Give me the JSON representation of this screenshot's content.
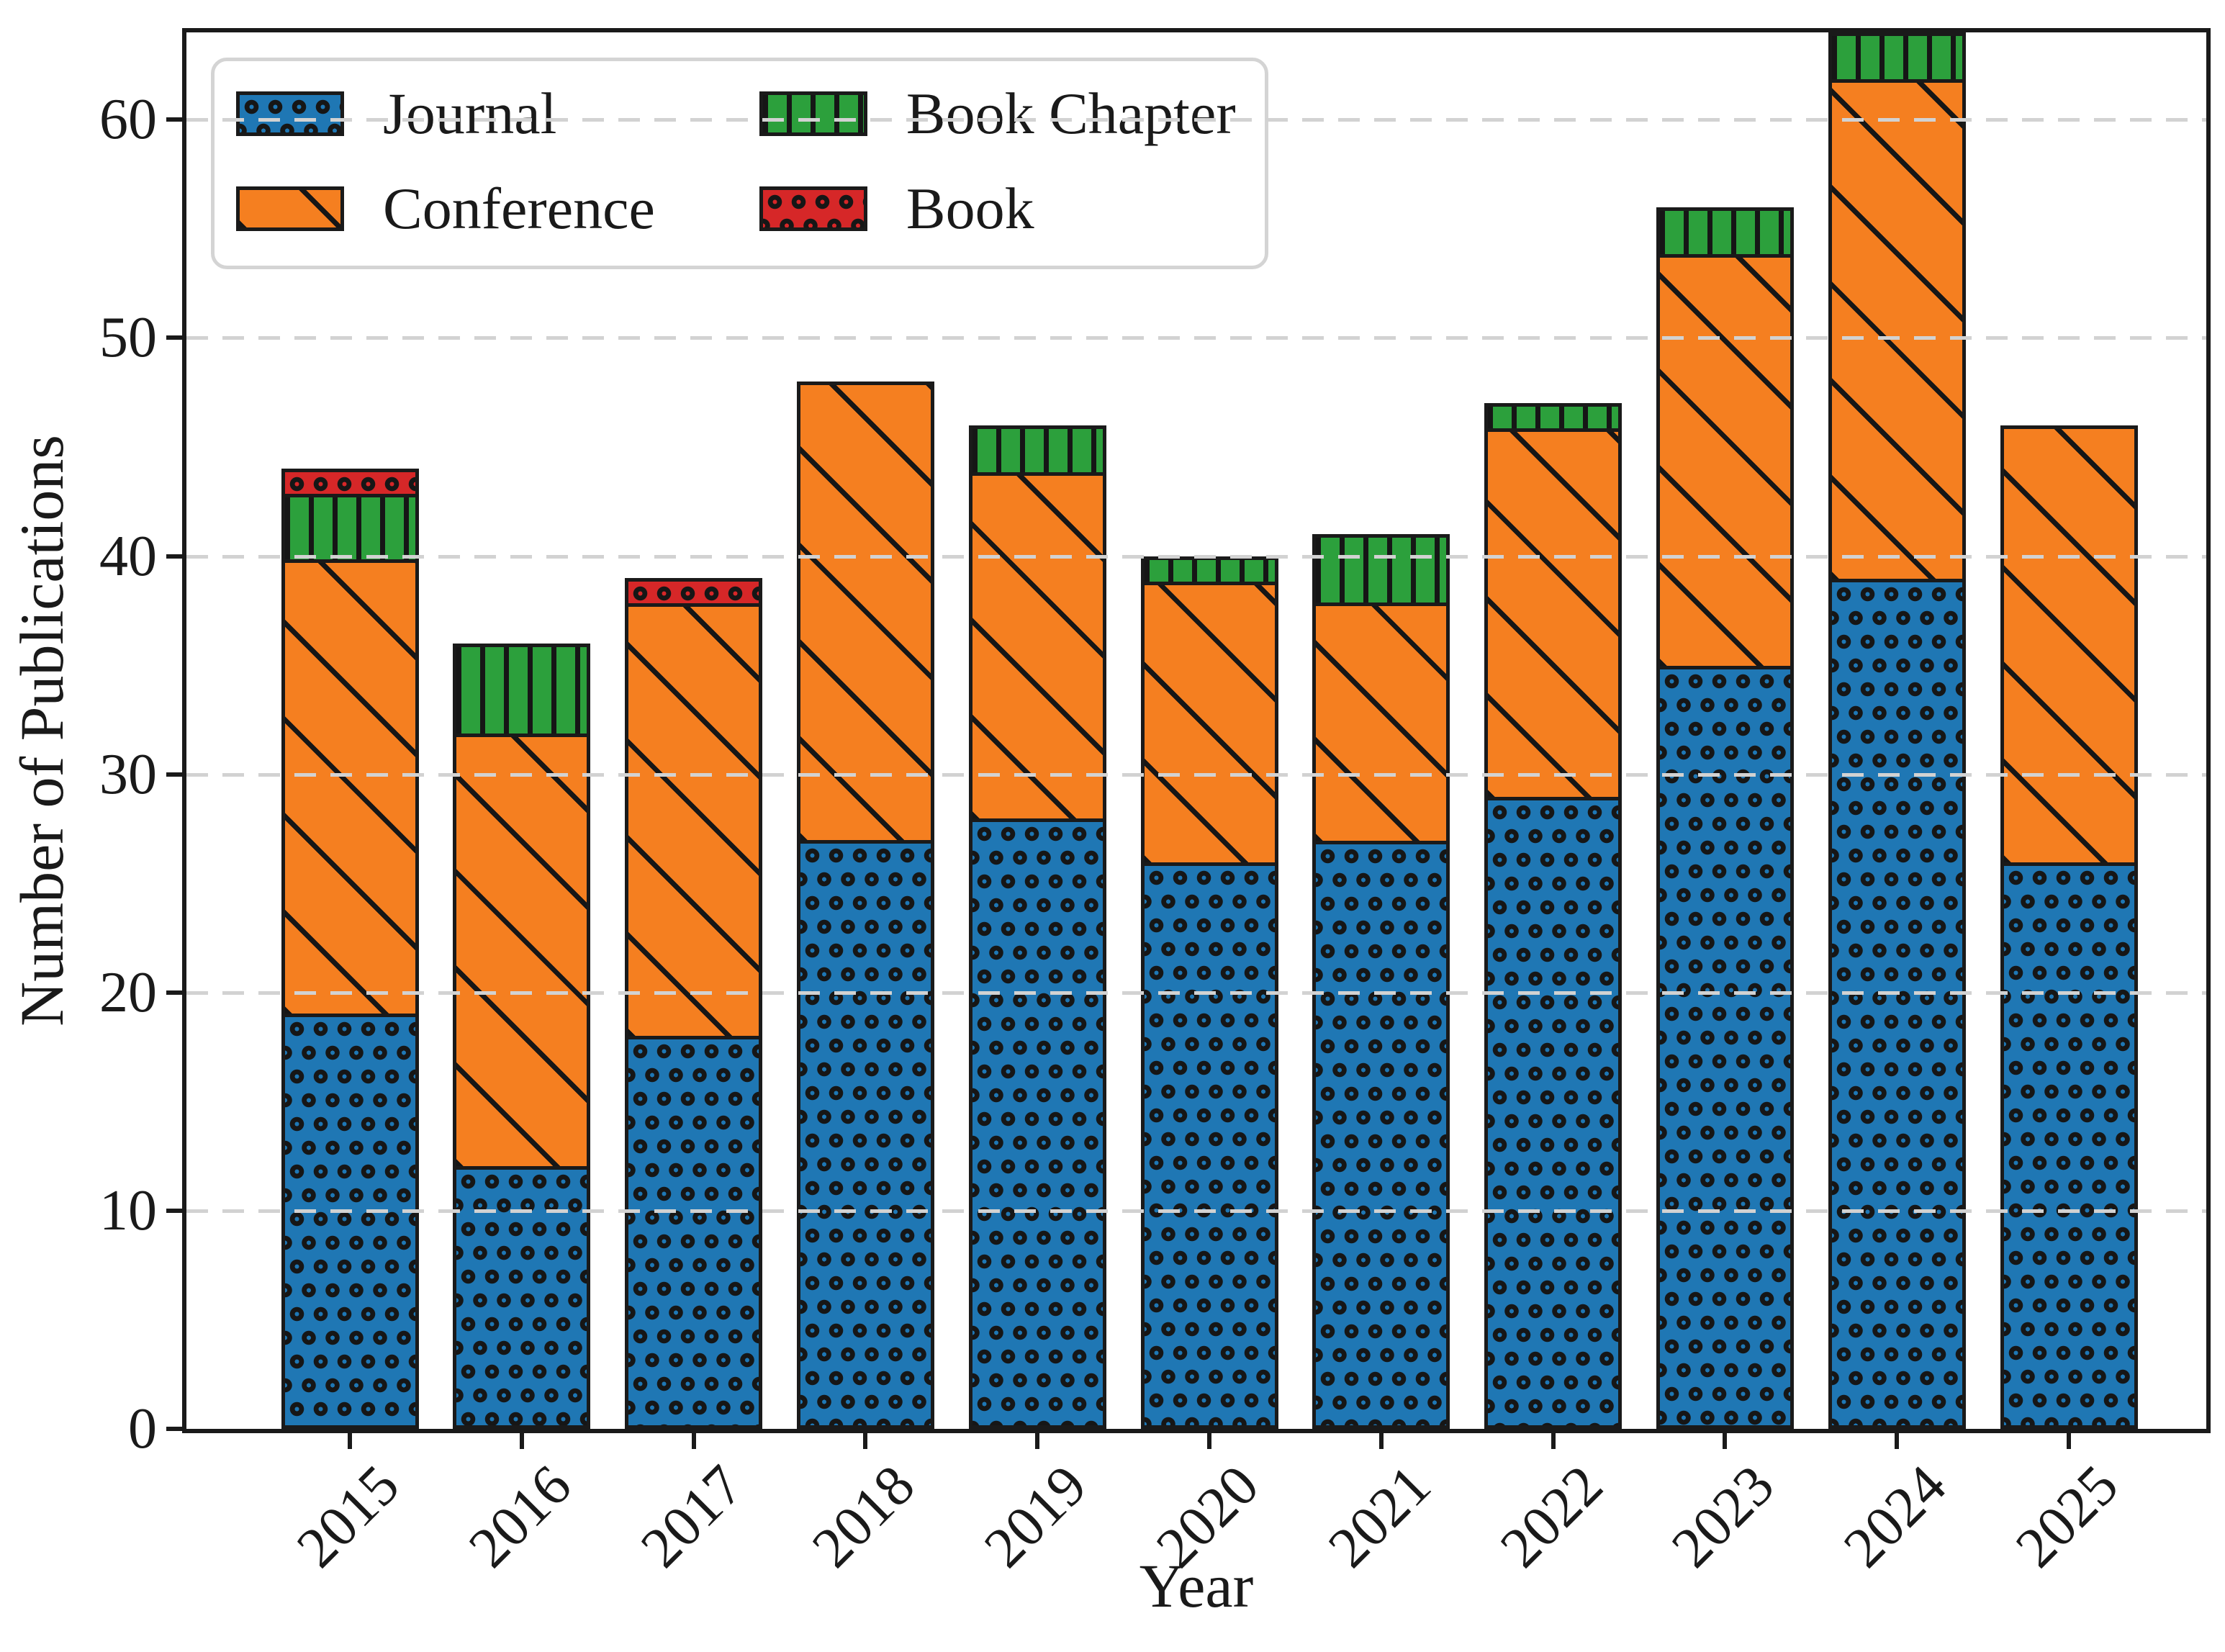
{
  "chart_data": {
    "type": "bar",
    "stacked": true,
    "title": "",
    "xlabel": "Year",
    "ylabel": "Number of Publications",
    "categories": [
      "2015",
      "2016",
      "2017",
      "2018",
      "2019",
      "2020",
      "2021",
      "2022",
      "2023",
      "2024",
      "2025"
    ],
    "series": [
      {
        "name": "Journal",
        "color": "#1f77b4",
        "hatch": "circle",
        "values": [
          19,
          12,
          18,
          27,
          28,
          26,
          27,
          29,
          35,
          39,
          26
        ]
      },
      {
        "name": "Conference",
        "color": "#f57f20",
        "hatch": "diagonal",
        "values": [
          21,
          20,
          20,
          21,
          16,
          13,
          11,
          17,
          19,
          23,
          20
        ]
      },
      {
        "name": "Book Chapter",
        "color": "#2ca03c",
        "hatch": "vertical",
        "values": [
          3,
          4,
          0,
          0,
          2,
          1,
          3,
          1,
          2,
          2,
          0
        ]
      },
      {
        "name": "Book",
        "color": "#d62728",
        "hatch": "circle",
        "values": [
          1,
          0,
          1,
          0,
          0,
          0,
          0,
          0,
          0,
          0,
          0
        ]
      }
    ],
    "totals": [
      44,
      36,
      39,
      48,
      46,
      40,
      41,
      47,
      56,
      64,
      46
    ],
    "ylim": [
      0,
      64
    ],
    "yticks": [
      0,
      10,
      20,
      30,
      40,
      50,
      60
    ],
    "grid": true,
    "grid_style": "dashed",
    "legend_position": "upper left",
    "colors": {
      "grid": "#d2d2d2",
      "edge": "#1a1a1a",
      "legend_border": "#d4d4d4",
      "text": "#1a1a1a",
      "background": "#ffffff"
    }
  }
}
